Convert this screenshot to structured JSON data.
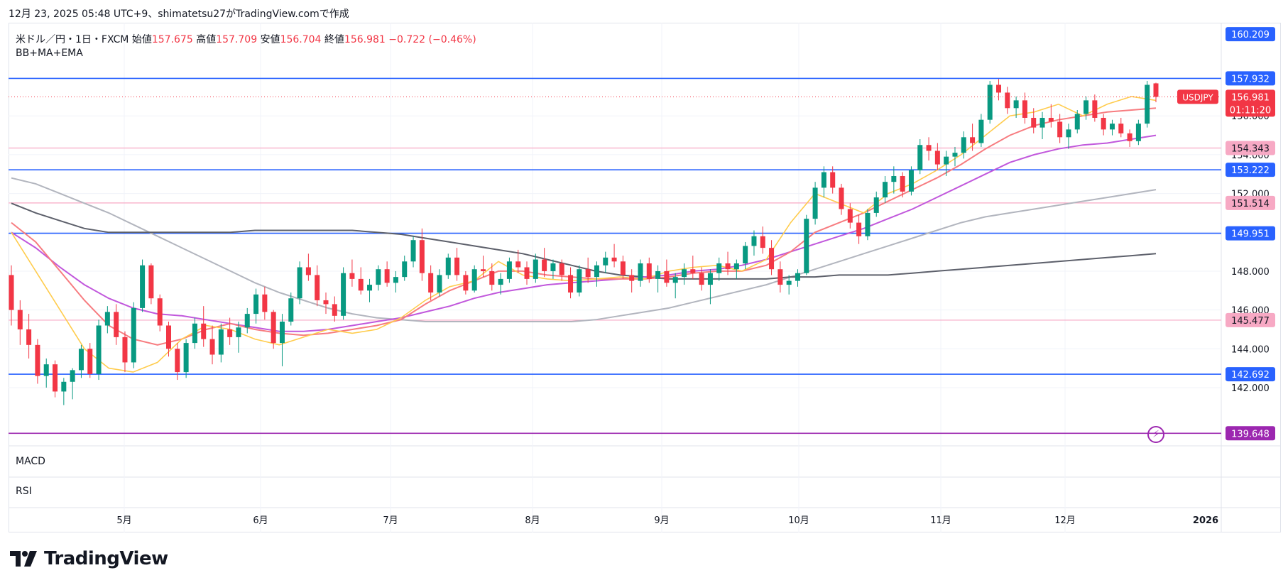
{
  "header": {
    "text": "12月 23, 2025 05:48 UTC+9、shimatetsu27がTradingView.comで作成"
  },
  "legend": {
    "symbol": "米ドル／円・1日・FXCM",
    "open_label": "始値",
    "open": "157.675",
    "high_label": "高値",
    "high": "157.709",
    "low_label": "安値",
    "low": "156.704",
    "close_label": "終値",
    "close": "156.981",
    "change": "−0.722 (−0.46%)"
  },
  "indicator_label": "BB+MA+EMA",
  "panes": {
    "macd": "MACD",
    "rsi": "RSI"
  },
  "logo_text": "TradingView",
  "price_tag": {
    "symbol": "USDJPY",
    "price": "156.981",
    "countdown": "01:11:20"
  },
  "colors": {
    "up": "#089981",
    "down": "#f23645",
    "blue_line": "#2962ff",
    "pink_line": "#f7a9c4",
    "purple_line": "#9c27b0"
  },
  "chart_data": {
    "type": "candlestick",
    "y_ticks": [
      "142.000",
      "144.000",
      "146.000",
      "148.000",
      "150.000",
      "152.000",
      "154.000",
      "156.000"
    ],
    "x_ticks": [
      "5月",
      "6月",
      "7月",
      "8月",
      "9月",
      "10月",
      "11月",
      "12月",
      "2026"
    ],
    "ylim": [
      139.0,
      160.8
    ],
    "horizontal_levels": [
      {
        "price": 160.209,
        "label": "160.209",
        "color": "#2962ff",
        "line": false
      },
      {
        "price": 157.932,
        "label": "157.932",
        "color": "#2962ff",
        "line": true
      },
      {
        "price": 154.343,
        "label": "154.343",
        "color": "#f7a9c4",
        "line": true
      },
      {
        "price": 153.222,
        "label": "153.222",
        "color": "#2962ff",
        "line": true
      },
      {
        "price": 151.514,
        "label": "151.514",
        "color": "#f7a9c4",
        "line": true
      },
      {
        "price": 149.951,
        "label": "149.951",
        "color": "#2962ff",
        "line": true
      },
      {
        "price": 145.477,
        "label": "145.477",
        "color": "#f7a9c4",
        "line": true
      },
      {
        "price": 142.692,
        "label": "142.692",
        "color": "#2962ff",
        "line": true
      },
      {
        "price": 139.648,
        "label": "139.648",
        "color": "#9c27b0",
        "line": true
      }
    ],
    "ema_fast": [
      150,
      148,
      146,
      144,
      143,
      142.8,
      143.3,
      144.5,
      145.2,
      145,
      144.5,
      144.2,
      144.6,
      145,
      144.8,
      145,
      145.6,
      146.5,
      147.2,
      147.5,
      148.5,
      147.8,
      147.6,
      147.5,
      147.6,
      147.7,
      147.6,
      148,
      148.2,
      148.3,
      148,
      148.6,
      150.5,
      152,
      151.5,
      151,
      152,
      152.5,
      153.2,
      154,
      155,
      156,
      156.2,
      156.6,
      156,
      156.6,
      157,
      156.8
    ],
    "ema_mid": [
      150.5,
      149.5,
      148,
      146.5,
      145.2,
      144.5,
      144.2,
      144.5,
      145,
      145.3,
      145,
      144.8,
      144.7,
      144.8,
      145,
      145.2,
      145.5,
      146.3,
      147,
      147.5,
      148,
      148,
      147.8,
      147.7,
      147.6,
      147.6,
      147.6,
      147.7,
      147.9,
      148,
      148,
      148.3,
      149,
      150,
      150.5,
      151,
      151.6,
      152.2,
      152.8,
      153.5,
      154.3,
      155,
      155.5,
      155.8,
      156,
      156.2,
      156.3,
      156.4
    ],
    "ma_purple": [
      150,
      149.2,
      148.2,
      147.3,
      146.6,
      146.1,
      145.8,
      145.7,
      145.5,
      145.3,
      145.1,
      144.9,
      144.9,
      145,
      145.2,
      145.4,
      145.6,
      145.9,
      146.2,
      146.6,
      146.9,
      147.1,
      147.3,
      147.4,
      147.5,
      147.6,
      147.7,
      147.8,
      148,
      148.1,
      148.3,
      148.6,
      149,
      149.4,
      149.8,
      150.2,
      150.7,
      151.2,
      151.8,
      152.4,
      153,
      153.6,
      154,
      154.3,
      154.5,
      154.6,
      154.8,
      155
    ],
    "ma_gray": [
      152.8,
      152.5,
      152,
      151.5,
      151,
      150.4,
      149.8,
      149.2,
      148.6,
      148,
      147.4,
      146.9,
      146.5,
      146.1,
      145.8,
      145.6,
      145.5,
      145.4,
      145.4,
      145.4,
      145.4,
      145.4,
      145.4,
      145.4,
      145.5,
      145.7,
      145.9,
      146.1,
      146.4,
      146.7,
      147,
      147.3,
      147.7,
      148.1,
      148.5,
      148.9,
      149.3,
      149.7,
      150.1,
      150.5,
      150.8,
      151,
      151.2,
      151.4,
      151.6,
      151.8,
      152,
      152.2
    ],
    "ma_dark": [
      151.5,
      151,
      150.6,
      150.2,
      150,
      150,
      150,
      150,
      150,
      150,
      150.1,
      150.1,
      150.1,
      150.1,
      150.1,
      150,
      149.9,
      149.7,
      149.5,
      149.3,
      149.1,
      148.9,
      148.6,
      148.3,
      148,
      147.8,
      147.7,
      147.6,
      147.6,
      147.6,
      147.6,
      147.6,
      147.7,
      147.7,
      147.8,
      147.8,
      147.8,
      147.9,
      148,
      148.1,
      148.2,
      148.3,
      148.4,
      148.5,
      148.6,
      148.7,
      148.8,
      148.9
    ],
    "ohlc": [
      [
        147.8,
        148.3,
        145.2,
        146.0
      ],
      [
        146.0,
        146.5,
        144.2,
        145.0
      ],
      [
        145.0,
        145.8,
        143.5,
        144.2
      ],
      [
        144.2,
        144.5,
        142.2,
        142.6
      ],
      [
        142.6,
        143.5,
        142.0,
        143.2
      ],
      [
        143.2,
        143.4,
        141.5,
        141.8
      ],
      [
        141.8,
        142.5,
        141.1,
        142.3
      ],
      [
        142.3,
        143.0,
        141.4,
        142.9
      ],
      [
        142.9,
        144.2,
        142.5,
        144.0
      ],
      [
        144.0,
        144.3,
        142.5,
        142.7
      ],
      [
        142.7,
        145.5,
        142.4,
        145.2
      ],
      [
        145.2,
        146.2,
        144.8,
        145.9
      ],
      [
        145.9,
        146.3,
        144.2,
        144.6
      ],
      [
        144.6,
        144.9,
        142.8,
        143.3
      ],
      [
        143.3,
        146.4,
        143.0,
        146.1
      ],
      [
        146.1,
        148.6,
        145.9,
        148.3
      ],
      [
        148.3,
        148.4,
        146.3,
        146.6
      ],
      [
        146.6,
        146.8,
        144.9,
        145.2
      ],
      [
        145.2,
        145.4,
        143.6,
        144.0
      ],
      [
        144.0,
        144.3,
        142.4,
        142.8
      ],
      [
        142.8,
        144.5,
        142.5,
        144.3
      ],
      [
        144.3,
        145.6,
        144.0,
        145.3
      ],
      [
        145.3,
        146.2,
        144.1,
        144.5
      ],
      [
        144.5,
        145.2,
        143.2,
        143.7
      ],
      [
        143.7,
        145.3,
        143.3,
        145.0
      ],
      [
        145.0,
        145.6,
        144.2,
        144.6
      ],
      [
        144.6,
        145.4,
        143.8,
        145.1
      ],
      [
        145.1,
        146.1,
        144.8,
        145.8
      ],
      [
        145.8,
        147.1,
        145.3,
        146.8
      ],
      [
        146.8,
        147.2,
        145.5,
        145.9
      ],
      [
        145.9,
        146.0,
        144.0,
        144.3
      ],
      [
        144.3,
        145.8,
        143.1,
        145.4
      ],
      [
        145.4,
        146.9,
        145.2,
        146.6
      ],
      [
        146.6,
        148.5,
        146.3,
        148.2
      ],
      [
        148.2,
        148.9,
        147.5,
        147.8
      ],
      [
        147.8,
        148.3,
        146.2,
        146.5
      ],
      [
        146.5,
        146.9,
        145.8,
        146.3
      ],
      [
        146.3,
        146.7,
        145.4,
        145.7
      ],
      [
        145.7,
        148.2,
        145.5,
        147.9
      ],
      [
        147.9,
        148.6,
        147.2,
        147.6
      ],
      [
        147.6,
        148.2,
        146.8,
        147.0
      ],
      [
        147.0,
        147.6,
        146.4,
        147.3
      ],
      [
        147.3,
        148.3,
        147.0,
        148.1
      ],
      [
        148.1,
        148.5,
        147.2,
        147.4
      ],
      [
        147.4,
        148.0,
        146.9,
        147.7
      ],
      [
        147.7,
        148.8,
        147.5,
        148.5
      ],
      [
        148.5,
        149.8,
        148.2,
        149.6
      ],
      [
        149.6,
        150.2,
        147.5,
        147.9
      ],
      [
        147.9,
        148.3,
        146.5,
        146.9
      ],
      [
        146.9,
        148.1,
        146.7,
        147.8
      ],
      [
        147.8,
        148.9,
        147.6,
        148.7
      ],
      [
        148.7,
        149.2,
        147.5,
        147.8
      ],
      [
        147.8,
        148.0,
        146.8,
        147.0
      ],
      [
        147.0,
        148.3,
        146.9,
        148.1
      ],
      [
        148.1,
        148.8,
        147.7,
        148.0
      ],
      [
        148.0,
        148.4,
        147.0,
        147.3
      ],
      [
        147.3,
        147.9,
        146.8,
        147.6
      ],
      [
        147.6,
        148.7,
        147.4,
        148.5
      ],
      [
        148.5,
        149.1,
        147.9,
        148.2
      ],
      [
        148.2,
        148.5,
        147.3,
        147.6
      ],
      [
        147.6,
        148.9,
        147.4,
        148.6
      ],
      [
        148.6,
        149.2,
        147.7,
        148.0
      ],
      [
        148.0,
        148.6,
        147.6,
        148.4
      ],
      [
        148.4,
        148.6,
        147.5,
        147.8
      ],
      [
        147.8,
        148.2,
        146.6,
        146.9
      ],
      [
        146.9,
        148.3,
        146.7,
        148.1
      ],
      [
        148.1,
        148.7,
        147.4,
        147.7
      ],
      [
        147.7,
        148.5,
        147.2,
        148.3
      ],
      [
        148.3,
        149.0,
        147.9,
        148.7
      ],
      [
        148.7,
        149.4,
        148.2,
        148.5
      ],
      [
        148.5,
        148.8,
        147.6,
        147.8
      ],
      [
        147.8,
        148.1,
        146.9,
        147.5
      ],
      [
        147.5,
        148.6,
        147.2,
        148.4
      ],
      [
        148.4,
        148.7,
        147.4,
        147.6
      ],
      [
        147.6,
        148.3,
        146.9,
        148.0
      ],
      [
        148.0,
        148.6,
        147.2,
        147.4
      ],
      [
        147.4,
        147.9,
        146.6,
        147.7
      ],
      [
        147.7,
        148.4,
        147.3,
        148.1
      ],
      [
        148.1,
        148.8,
        147.6,
        147.9
      ],
      [
        147.9,
        148.2,
        147.0,
        147.3
      ],
      [
        147.3,
        148.1,
        146.3,
        147.9
      ],
      [
        147.9,
        148.7,
        147.5,
        148.4
      ],
      [
        148.4,
        149.0,
        147.8,
        148.1
      ],
      [
        148.1,
        148.6,
        147.6,
        148.4
      ],
      [
        148.4,
        149.5,
        148.1,
        149.3
      ],
      [
        149.3,
        150.1,
        148.8,
        149.8
      ],
      [
        149.8,
        150.3,
        148.9,
        149.2
      ],
      [
        149.2,
        149.6,
        147.8,
        148.1
      ],
      [
        148.1,
        148.5,
        146.9,
        147.3
      ],
      [
        147.3,
        147.8,
        146.8,
        147.5
      ],
      [
        147.5,
        148.1,
        147.2,
        147.9
      ],
      [
        147.9,
        150.9,
        147.8,
        150.7
      ],
      [
        150.7,
        152.6,
        150.4,
        152.3
      ],
      [
        152.3,
        153.4,
        151.8,
        153.1
      ],
      [
        153.1,
        153.4,
        152.0,
        152.3
      ],
      [
        152.3,
        152.5,
        150.9,
        151.2
      ],
      [
        151.2,
        151.5,
        150.2,
        150.5
      ],
      [
        150.5,
        150.9,
        149.4,
        149.8
      ],
      [
        149.8,
        151.2,
        149.6,
        151.0
      ],
      [
        151.0,
        152.1,
        150.8,
        151.8
      ],
      [
        151.8,
        152.9,
        151.5,
        152.6
      ],
      [
        152.6,
        153.4,
        152.0,
        152.9
      ],
      [
        152.9,
        153.1,
        151.8,
        152.1
      ],
      [
        152.1,
        153.4,
        151.9,
        153.2
      ],
      [
        153.2,
        154.8,
        153.0,
        154.5
      ],
      [
        154.5,
        154.9,
        153.7,
        154.2
      ],
      [
        154.2,
        154.6,
        153.2,
        153.5
      ],
      [
        153.5,
        154.2,
        152.9,
        153.9
      ],
      [
        153.9,
        154.4,
        153.4,
        154.1
      ],
      [
        154.1,
        155.2,
        153.8,
        154.9
      ],
      [
        154.9,
        155.6,
        154.2,
        154.6
      ],
      [
        154.6,
        156.1,
        154.4,
        155.8
      ],
      [
        155.8,
        157.8,
        155.6,
        157.6
      ],
      [
        157.6,
        157.9,
        156.8,
        157.2
      ],
      [
        157.2,
        157.5,
        156.1,
        156.4
      ],
      [
        156.4,
        157.0,
        155.9,
        156.8
      ],
      [
        156.8,
        157.2,
        155.6,
        155.9
      ],
      [
        155.9,
        156.4,
        155.1,
        155.4
      ],
      [
        155.4,
        156.2,
        154.8,
        155.9
      ],
      [
        155.9,
        156.6,
        155.4,
        155.7
      ],
      [
        155.7,
        156.1,
        154.6,
        154.9
      ],
      [
        154.9,
        155.6,
        154.3,
        155.3
      ],
      [
        155.3,
        156.3,
        155.1,
        156.1
      ],
      [
        156.1,
        157.0,
        155.8,
        156.8
      ],
      [
        156.8,
        157.1,
        155.7,
        155.9
      ],
      [
        155.9,
        156.1,
        155.0,
        155.3
      ],
      [
        155.3,
        155.8,
        155.0,
        155.6
      ],
      [
        155.6,
        155.9,
        154.9,
        155.1
      ],
      [
        155.1,
        155.3,
        154.4,
        154.7
      ],
      [
        154.7,
        155.8,
        154.5,
        155.6
      ],
      [
        155.6,
        157.8,
        155.4,
        157.6
      ],
      [
        157.675,
        157.709,
        156.704,
        156.981
      ]
    ]
  }
}
